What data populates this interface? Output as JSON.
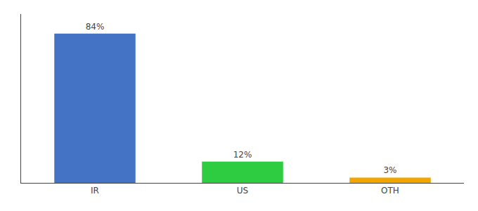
{
  "chart_data": {
    "type": "bar",
    "categories": [
      "IR",
      "US",
      "OTH"
    ],
    "values": [
      84,
      12,
      3
    ],
    "value_labels": [
      "84%",
      "12%",
      "3%"
    ],
    "data_labels": true,
    "colors": [
      "#4472c4",
      "#2ecc40",
      "#f0a500"
    ],
    "ylim": [
      0,
      95
    ],
    "yticks": [],
    "tick_labels": "x",
    "grid": false
  }
}
